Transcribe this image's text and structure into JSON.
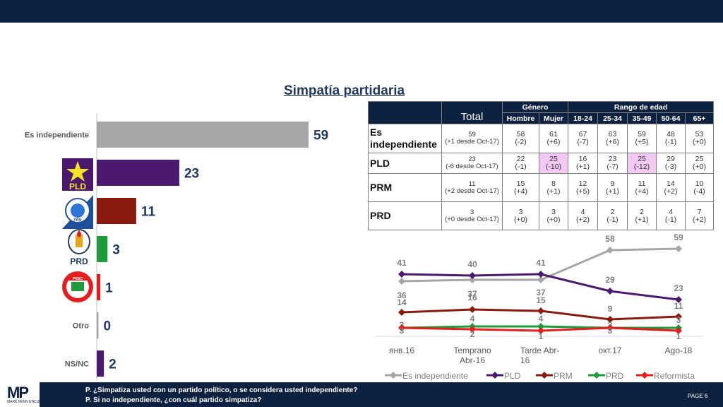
{
  "title": "Simpatía partidaria",
  "colors": {
    "independiente": "#a6a6a6",
    "pld": "#4b1a6e",
    "prm": "#8b1a0e",
    "prd": "#1e9a3a",
    "reformista": "#e41e1e",
    "navy": "#0d2240"
  },
  "chart_data": [
    {
      "type": "bar",
      "orientation": "horizontal",
      "categories": [
        "Es independiente",
        "PLD",
        "PRM",
        "PRD",
        "Reformista",
        "Otro",
        "NS/NC"
      ],
      "category_labels": {
        "independiente": "Es independiente",
        "otro": "Otro",
        "nsnc": "NS/NC"
      },
      "party_logos": [
        "PLD",
        "PRM",
        "PRD",
        "PRSC"
      ],
      "values": [
        59,
        23,
        11,
        3,
        1,
        0,
        2
      ],
      "colors": [
        "#a6a6a6",
        "#4b1a6e",
        "#8b1a0e",
        "#1e9a3a",
        "#e41e1e",
        "#a6a6a6",
        "#4b1a6e"
      ],
      "xlim": [
        0,
        70
      ]
    },
    {
      "type": "table",
      "header": {
        "total": "Total",
        "genero": "Género",
        "rango": "Rango de edad",
        "columns": [
          "Hombre",
          "Mujer",
          "18-24",
          "25-34",
          "35-49",
          "50-64",
          "65+"
        ]
      },
      "rows": [
        {
          "label": "Es independiente",
          "total": "59",
          "total_change": "(+1 desde Oct-17)",
          "cells": [
            [
              "58",
              "(-2)"
            ],
            [
              "61",
              "(+6)"
            ],
            [
              "67",
              "(-7)"
            ],
            [
              "63",
              "(+6)"
            ],
            [
              "59",
              "(+5)"
            ],
            [
              "48",
              "(-1)"
            ],
            [
              "53",
              "(+0)"
            ]
          ],
          "highlight": []
        },
        {
          "label": "PLD",
          "total": "23",
          "total_change": "(-6 desde Oct-17)",
          "cells": [
            [
              "22",
              "(-1)"
            ],
            [
              "25",
              "(-10)"
            ],
            [
              "16",
              "(+1)"
            ],
            [
              "23",
              "(-7)"
            ],
            [
              "25",
              "(-12)"
            ],
            [
              "29",
              "(-3)"
            ],
            [
              "25",
              "(+0)"
            ]
          ],
          "highlight": [
            1,
            4
          ]
        },
        {
          "label": "PRM",
          "total": "11",
          "total_change": "(+2 desde Oct-17)",
          "cells": [
            [
              "15",
              "(+4)"
            ],
            [
              "8",
              "(+1)"
            ],
            [
              "12",
              "(+5)"
            ],
            [
              "9",
              "(+1)"
            ],
            [
              "11",
              "(+4)"
            ],
            [
              "14",
              "(+2)"
            ],
            [
              "10",
              "(-4)"
            ]
          ],
          "highlight": []
        },
        {
          "label": "PRD",
          "total": "3",
          "total_change": "(+0 desde Oct-17)",
          "cells": [
            [
              "3",
              "(+0)"
            ],
            [
              "3",
              "(+0)"
            ],
            [
              "4",
              "(+2)"
            ],
            [
              "2",
              "(-1)"
            ],
            [
              "2",
              "(+1)"
            ],
            [
              "4",
              "(-1)"
            ],
            [
              "7",
              "(+2)"
            ]
          ],
          "highlight": []
        }
      ]
    },
    {
      "type": "line",
      "x": [
        "янв.16",
        "Temprano Abr-16",
        "Tarde Abr-16",
        "окт.17",
        "Ago-18"
      ],
      "series": [
        {
          "name": "Es independiente",
          "color": "#a6a6a6",
          "marker": "diamond",
          "values": [
            36,
            37,
            37,
            58,
            59
          ]
        },
        {
          "name": "PLD",
          "color": "#4b1a6e",
          "marker": "diamond",
          "values": [
            41,
            40,
            41,
            29,
            23
          ]
        },
        {
          "name": "PRM",
          "color": "#8b1a0e",
          "marker": "diamond",
          "values": [
            14,
            16,
            15,
            9,
            11
          ]
        },
        {
          "name": "PRD",
          "color": "#1e9a3a",
          "marker": "diamond",
          "values": [
            3,
            4,
            4,
            3,
            3
          ]
        },
        {
          "name": "Reformista",
          "color": "#e41e1e",
          "marker": "diamond",
          "values": [
            3,
            2,
            1,
            3,
            1
          ]
        }
      ],
      "ylim": [
        0,
        65
      ],
      "legend": "bottom",
      "grid": false
    }
  ],
  "footer": {
    "logo_text": "MP",
    "logo_sub": "MARK PENN ENCUESTA",
    "q1": "P. ¿Simpatiza usted con un partido político, o se considera usted independiente?",
    "q2": "P. Si no independiente, ¿con cuál partido simpatiza?",
    "page": "PAGE  6"
  }
}
